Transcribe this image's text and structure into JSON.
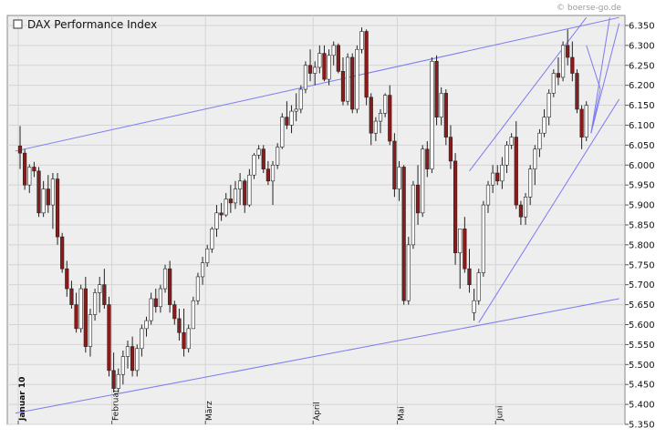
{
  "watermark": "© boerse-go.de",
  "chart_data": {
    "type": "candlestick",
    "title": "DAX Performance Index",
    "y_axis_side": "right",
    "ylim": [
      5350,
      6375
    ],
    "y_ticks": [
      5350,
      5400,
      5450,
      5500,
      5550,
      5600,
      5650,
      5700,
      5750,
      5800,
      5850,
      5900,
      5950,
      6000,
      6050,
      6100,
      6150,
      6200,
      6250,
      6300,
      6350
    ],
    "y_tick_labels": [
      "5.350",
      "5.400",
      "5.450",
      "5.500",
      "5.550",
      "5.600",
      "5.650",
      "5.700",
      "5.750",
      "5.800",
      "5.850",
      "5.900",
      "5.950",
      "6.000",
      "6.050",
      "6.100",
      "6.150",
      "6.200",
      "6.250",
      "6.300",
      "6.350"
    ],
    "x_month_labels": [
      {
        "label": "Januar 10",
        "index": 0
      },
      {
        "label": "Februar",
        "index": 20
      },
      {
        "label": "März",
        "index": 40
      },
      {
        "label": "April",
        "index": 63
      },
      {
        "label": "Mai",
        "index": 81
      },
      {
        "label": "Juni",
        "index": 102
      }
    ],
    "grid": true,
    "up_color": "#ffffff",
    "down_color": "#8b1a1a",
    "line_color": "#7b7bf0",
    "candles": [
      [
        6048,
        6098,
        5990,
        6030
      ],
      [
        6030,
        6040,
        5938,
        5950
      ],
      [
        5950,
        6002,
        5930,
        5995
      ],
      [
        5995,
        6008,
        5970,
        5985
      ],
      [
        5985,
        5995,
        5870,
        5880
      ],
      [
        5880,
        5960,
        5870,
        5940
      ],
      [
        5940,
        5975,
        5880,
        5900
      ],
      [
        5900,
        5980,
        5840,
        5965
      ],
      [
        5965,
        5980,
        5800,
        5820
      ],
      [
        5820,
        5830,
        5730,
        5740
      ],
      [
        5740,
        5760,
        5670,
        5690
      ],
      [
        5690,
        5710,
        5640,
        5650
      ],
      [
        5650,
        5680,
        5580,
        5590
      ],
      [
        5590,
        5700,
        5580,
        5690
      ],
      [
        5690,
        5720,
        5530,
        5545
      ],
      [
        5545,
        5640,
        5520,
        5625
      ],
      [
        5625,
        5690,
        5610,
        5680
      ],
      [
        5680,
        5720,
        5630,
        5700
      ],
      [
        5700,
        5740,
        5640,
        5650
      ],
      [
        5650,
        5670,
        5470,
        5485
      ],
      [
        5485,
        5530,
        5430,
        5440
      ],
      [
        5440,
        5490,
        5430,
        5475
      ],
      [
        5475,
        5535,
        5450,
        5520
      ],
      [
        5520,
        5560,
        5490,
        5545
      ],
      [
        5545,
        5570,
        5470,
        5485
      ],
      [
        5485,
        5550,
        5470,
        5540
      ],
      [
        5540,
        5600,
        5520,
        5590
      ],
      [
        5590,
        5620,
        5570,
        5610
      ],
      [
        5610,
        5680,
        5600,
        5665
      ],
      [
        5665,
        5690,
        5630,
        5645
      ],
      [
        5645,
        5700,
        5630,
        5690
      ],
      [
        5690,
        5750,
        5680,
        5740
      ],
      [
        5740,
        5760,
        5630,
        5650
      ],
      [
        5650,
        5660,
        5600,
        5615
      ],
      [
        5615,
        5640,
        5560,
        5580
      ],
      [
        5580,
        5640,
        5520,
        5540
      ],
      [
        5540,
        5600,
        5530,
        5590
      ],
      [
        5590,
        5670,
        5590,
        5660
      ],
      [
        5660,
        5730,
        5650,
        5720
      ],
      [
        5720,
        5770,
        5700,
        5755
      ],
      [
        5755,
        5800,
        5745,
        5790
      ],
      [
        5790,
        5845,
        5780,
        5840
      ],
      [
        5840,
        5900,
        5820,
        5880
      ],
      [
        5880,
        5905,
        5860,
        5875
      ],
      [
        5875,
        5930,
        5870,
        5915
      ],
      [
        5915,
        5950,
        5880,
        5905
      ],
      [
        5905,
        5960,
        5890,
        5940
      ],
      [
        5940,
        5980,
        5900,
        5960
      ],
      [
        5960,
        5965,
        5880,
        5900
      ],
      [
        5900,
        5990,
        5895,
        5975
      ],
      [
        5975,
        6030,
        5965,
        6025
      ],
      [
        6025,
        6050,
        6015,
        6040
      ],
      [
        6040,
        6050,
        5980,
        5990
      ],
      [
        5990,
        6010,
        5950,
        5960
      ],
      [
        5960,
        6010,
        5900,
        6000
      ],
      [
        6000,
        6055,
        5990,
        6045
      ],
      [
        6045,
        6130,
        6040,
        6120
      ],
      [
        6120,
        6160,
        6090,
        6100
      ],
      [
        6100,
        6150,
        6080,
        6135
      ],
      [
        6135,
        6180,
        6110,
        6140
      ],
      [
        6140,
        6200,
        6130,
        6190
      ],
      [
        6190,
        6260,
        6180,
        6250
      ],
      [
        6250,
        6290,
        6210,
        6230
      ],
      [
        6230,
        6260,
        6200,
        6245
      ],
      [
        6245,
        6300,
        6230,
        6280
      ],
      [
        6280,
        6300,
        6210,
        6215
      ],
      [
        6215,
        6290,
        6200,
        6275
      ],
      [
        6275,
        6310,
        6250,
        6300
      ],
      [
        6300,
        6305,
        6230,
        6235
      ],
      [
        6235,
        6270,
        6150,
        6160
      ],
      [
        6160,
        6280,
        6150,
        6270
      ],
      [
        6270,
        6280,
        6130,
        6140
      ],
      [
        6140,
        6300,
        6130,
        6290
      ],
      [
        6290,
        6345,
        6280,
        6335
      ],
      [
        6335,
        6340,
        6150,
        6170
      ],
      [
        6170,
        6180,
        6050,
        6080
      ],
      [
        6080,
        6120,
        6060,
        6110
      ],
      [
        6110,
        6140,
        6080,
        6130
      ],
      [
        6130,
        6180,
        6120,
        6175
      ],
      [
        6175,
        6200,
        6050,
        6060
      ],
      [
        6060,
        6080,
        5920,
        5940
      ],
      [
        5940,
        6010,
        5910,
        5995
      ],
      [
        5995,
        6000,
        5650,
        5660
      ],
      [
        5660,
        5820,
        5650,
        5800
      ],
      [
        5800,
        5960,
        5790,
        5950
      ],
      [
        5950,
        6000,
        5850,
        5880
      ],
      [
        5880,
        6050,
        5870,
        6040
      ],
      [
        6040,
        6060,
        5970,
        5990
      ],
      [
        5990,
        6270,
        5980,
        6260
      ],
      [
        6260,
        6275,
        6100,
        6120
      ],
      [
        6120,
        6195,
        6100,
        6180
      ],
      [
        6180,
        6190,
        6050,
        6070
      ],
      [
        6070,
        6100,
        5990,
        6010
      ],
      [
        6010,
        6030,
        5750,
        5780
      ],
      [
        5780,
        5830,
        5690,
        5840
      ],
      [
        5840,
        5870,
        5730,
        5740
      ],
      [
        5740,
        5790,
        5680,
        5700
      ],
      [
        5630,
        5690,
        5610,
        5660
      ],
      [
        5660,
        5740,
        5650,
        5730
      ],
      [
        5730,
        5910,
        5720,
        5900
      ],
      [
        5900,
        5960,
        5880,
        5950
      ],
      [
        5950,
        6000,
        5930,
        5980
      ],
      [
        5980,
        6000,
        5950,
        5960
      ],
      [
        5960,
        6020,
        5940,
        6000
      ],
      [
        6000,
        6060,
        5980,
        6050
      ],
      [
        6050,
        6080,
        6040,
        6070
      ],
      [
        6070,
        6110,
        5890,
        5900
      ],
      [
        5900,
        5910,
        5850,
        5870
      ],
      [
        5870,
        5930,
        5850,
        5920
      ],
      [
        5920,
        6000,
        5900,
        5990
      ],
      [
        5990,
        6050,
        5950,
        6040
      ],
      [
        6040,
        6090,
        6020,
        6080
      ],
      [
        6080,
        6140,
        6070,
        6120
      ],
      [
        6120,
        6190,
        6100,
        6180
      ],
      [
        6180,
        6240,
        6170,
        6230
      ],
      [
        6230,
        6270,
        6200,
        6220
      ],
      [
        6220,
        6310,
        6210,
        6300
      ],
      [
        6300,
        6340,
        6250,
        6270
      ],
      [
        6270,
        6310,
        6210,
        6230
      ],
      [
        6230,
        6240,
        6130,
        6140
      ],
      [
        6140,
        6150,
        6040,
        6070
      ],
      [
        6070,
        6160,
        6060,
        6150
      ]
    ],
    "trend_lines": [
      {
        "from": [
          -1,
          6035
        ],
        "to": [
          128,
          6370
        ]
      },
      {
        "from": [
          -1,
          5378
        ],
        "to": [
          128,
          5665
        ]
      },
      {
        "from": [
          98,
          5605
        ],
        "to": [
          128,
          6165
        ]
      },
      {
        "from": [
          96,
          5985
        ],
        "to": [
          121,
          6370
        ]
      },
      {
        "from": [
          121,
          6300
        ],
        "to": [
          124,
          6190
        ]
      },
      {
        "from": [
          124,
          6190
        ],
        "to": [
          122,
          6080
        ]
      },
      {
        "from": [
          122,
          6080
        ],
        "to": [
          126,
          6370
        ]
      },
      {
        "from": [
          122,
          6080
        ],
        "to": [
          128,
          6355
        ]
      }
    ]
  }
}
